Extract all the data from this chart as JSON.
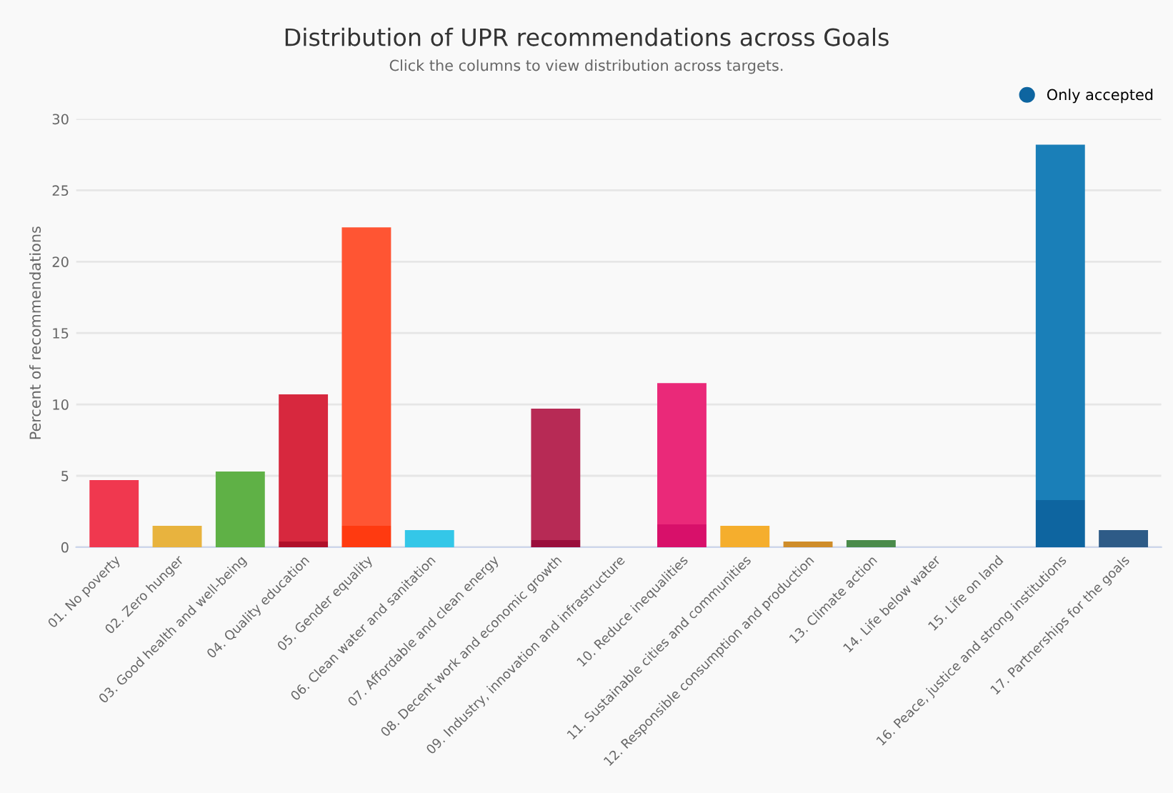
{
  "chart_data": {
    "type": "bar",
    "title": "Distribution of UPR recommendations across Goals",
    "subtitle": "Click the columns to view distribution across targets.",
    "ylabel": "Percent of recommendations",
    "categories": [
      "01. No poverty",
      "02. Zero hunger",
      "03. Good health and well-being",
      "04. Quality education",
      "05. Gender equality",
      "06. Clean water and sanitation",
      "07. Affordable and clean energy",
      "08. Decent work and economic growth",
      "09. Industry, innovation and infrastructure",
      "10. Reduce inequalities",
      "11. Sustainable cities and communities",
      "12. Responsible consumption and production",
      "13. Climate action",
      "14. Life below water",
      "15. Life on land",
      "16. Peace, justice and strong institutions",
      "17. Partnerships for the goals"
    ],
    "stacked": true,
    "series": [
      {
        "name": "Only accepted",
        "color": "#0e65a0",
        "colors": [
          "#d01c36",
          "#d79a25",
          "#4a9a35",
          "#b0102a",
          "#ff3a10",
          "#1fb0d5",
          "#e0a800",
          "#9a0e3c",
          "#e0501a",
          "#d8106a",
          "#d98f18",
          "#b87820",
          "#3b7a3c",
          "#0a80c0",
          "#42a020",
          "#0e65a0",
          "#244a70"
        ],
        "values": [
          0,
          0,
          0,
          0.4,
          1.5,
          0,
          0,
          0.5,
          0,
          1.6,
          0,
          0,
          0,
          0,
          0,
          3.3,
          0
        ]
      },
      {
        "colors": [
          "#f0384f",
          "#e8b33e",
          "#5fb146",
          "#d7283e",
          "#ff5533",
          "#34c7e8",
          "#fcc30b",
          "#b72a55",
          "#fd6925",
          "#ea2979",
          "#f5ae2d",
          "#cf8d2a",
          "#4a8b4b",
          "#0a97d9",
          "#56c02b",
          "#1a7fb8",
          "#2e5b87"
        ],
        "values": [
          4.7,
          1.5,
          5.3,
          10.3,
          20.9,
          1.2,
          0,
          9.2,
          0,
          9.9,
          1.5,
          0.4,
          0.5,
          0,
          0,
          24.9,
          1.2
        ]
      }
    ],
    "ylim": [
      0,
      30
    ],
    "yticks": [
      0,
      5,
      10,
      15,
      20,
      25,
      30
    ],
    "grid": "y",
    "legend": "top right"
  }
}
